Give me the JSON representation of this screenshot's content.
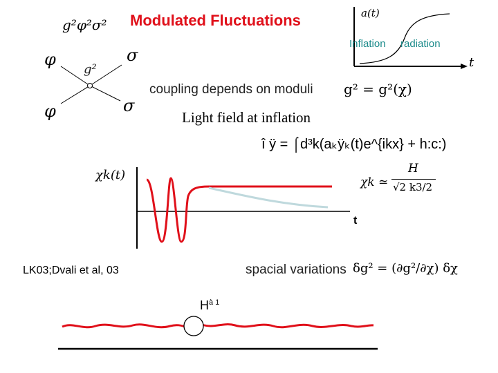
{
  "title": "Modulated Fluctuations",
  "vertex": {
    "top_formula": "g²φ²σ²",
    "phi_top": "φ",
    "phi_bottom": "φ",
    "sigma_top": "σ",
    "sigma_bottom": "σ",
    "coupling_label": "g²"
  },
  "scale_factor_plot": {
    "y_label": "a(t)",
    "x_label": "t",
    "phase_inflation": "Inflation",
    "phase_radiation": "radiation"
  },
  "coupling_text": "coupling depends on moduli",
  "coupling_formula": "g² = g²(χ)",
  "light_field_text": "Light field at inflation",
  "field_expansion": "î ÿ =  ⌠d³k(aₖÿₖ(t)e^{ikx} + h:c:)",
  "mode_plot": {
    "y_label": "χk(t)",
    "x_label": "t"
  },
  "amplitude_formula": {
    "lhs": "χk ≃",
    "numerator": "H",
    "denominator": "√2 k3/2"
  },
  "reference": "LK03;Dvali et al, 03",
  "spacial_text": "spacial variations",
  "spacial_formula": "δg² = (∂g²/∂χ) δχ",
  "horizon_label": "H",
  "horizon_sup": "à 1",
  "colors": {
    "accent_red": "#e0101a",
    "teal": "#1a8a8a",
    "light_blue": "#bfd9dd",
    "ink": "#000000"
  }
}
